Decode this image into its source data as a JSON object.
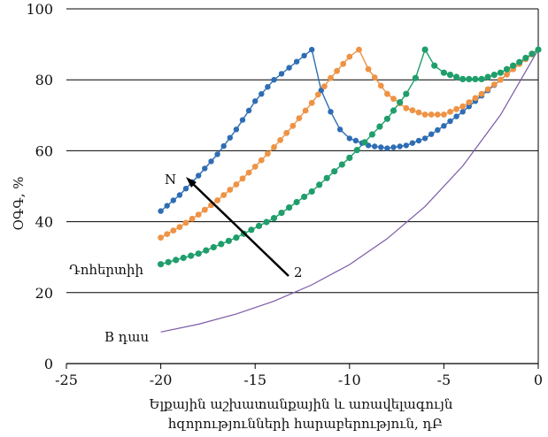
{
  "chart_data": {
    "type": "line",
    "xlabel_line1": "Ելքային աշխատանքային և առավելագույն",
    "xlabel_line2": "հզորությունների հարաբերություն, դԲ",
    "ylabel": "ՕԳԳ, %",
    "xlim": [
      -25,
      0
    ],
    "ylim": [
      0,
      100
    ],
    "xticks": [
      "-25",
      "-20",
      "-15",
      "-10",
      "-5",
      "0"
    ],
    "yticks": [
      "0",
      "20",
      "40",
      "60",
      "80",
      "100"
    ],
    "grid": "horizontal",
    "annotations": {
      "doherty": "Դոհերտիի",
      "classb": "B դաս",
      "n_label": "N",
      "two_label": "2"
    },
    "colors": {
      "blue": "#2E6DB4",
      "orange": "#EE9345",
      "green": "#1F9E6B",
      "purple": "#7B5AA6",
      "arrow": "#000000"
    },
    "series": [
      {
        "color_key": "blue",
        "points": [
          [
            -20,
            43
          ],
          [
            -19,
            47.5
          ],
          [
            -18,
            53
          ],
          [
            -17,
            59
          ],
          [
            -16,
            66
          ],
          [
            -15,
            74
          ],
          [
            -14,
            80
          ],
          [
            -12,
            88.5
          ],
          [
            -11.5,
            77
          ],
          [
            -11,
            71
          ],
          [
            -10.5,
            66
          ],
          [
            -10,
            63.5
          ],
          [
            -9,
            61.5
          ],
          [
            -8,
            60.7
          ],
          [
            -7,
            61.5
          ],
          [
            -6,
            63.5
          ],
          [
            -5,
            67
          ],
          [
            -4,
            71
          ],
          [
            -3,
            75.5
          ],
          [
            -2,
            80
          ],
          [
            -1,
            84.5
          ],
          [
            0,
            88.5
          ]
        ]
      },
      {
        "color_key": "orange",
        "points": [
          [
            -20,
            35.5
          ],
          [
            -19,
            38.5
          ],
          [
            -18,
            42
          ],
          [
            -17,
            46
          ],
          [
            -16,
            50.5
          ],
          [
            -15,
            55.5
          ],
          [
            -14,
            61
          ],
          [
            -13,
            67
          ],
          [
            -12,
            73.5
          ],
          [
            -11,
            80.5
          ],
          [
            -10,
            86.5
          ],
          [
            -9.5,
            88.5
          ],
          [
            -9,
            83
          ],
          [
            -8,
            76
          ],
          [
            -7,
            72
          ],
          [
            -6,
            70.2
          ],
          [
            -5,
            70.2
          ],
          [
            -4,
            72.5
          ],
          [
            -3,
            76
          ],
          [
            -2,
            80
          ],
          [
            -1,
            84.5
          ],
          [
            0,
            88.5
          ]
        ]
      },
      {
        "color_key": "green",
        "points": [
          [
            -20,
            28
          ],
          [
            -18,
            31
          ],
          [
            -16,
            35.5
          ],
          [
            -14,
            41
          ],
          [
            -12,
            48.5
          ],
          [
            -10,
            58
          ],
          [
            -8,
            69
          ],
          [
            -7,
            76
          ],
          [
            -6.5,
            80.5
          ],
          [
            -6,
            88.5
          ],
          [
            -5.5,
            84
          ],
          [
            -5,
            82
          ],
          [
            -4,
            80.2
          ],
          [
            -3,
            80.2
          ],
          [
            -2,
            82
          ],
          [
            -1,
            85
          ],
          [
            0,
            88.5
          ]
        ]
      },
      {
        "color_key": "purple",
        "points": [
          [
            -20,
            8.9
          ],
          [
            -18,
            11.1
          ],
          [
            -16,
            14.0
          ],
          [
            -14,
            17.6
          ],
          [
            -12,
            22.2
          ],
          [
            -10,
            27.9
          ],
          [
            -8,
            35.2
          ],
          [
            -6,
            44.3
          ],
          [
            -4,
            55.7
          ],
          [
            -2,
            70.1
          ],
          [
            0,
            88.5
          ]
        ]
      }
    ]
  }
}
